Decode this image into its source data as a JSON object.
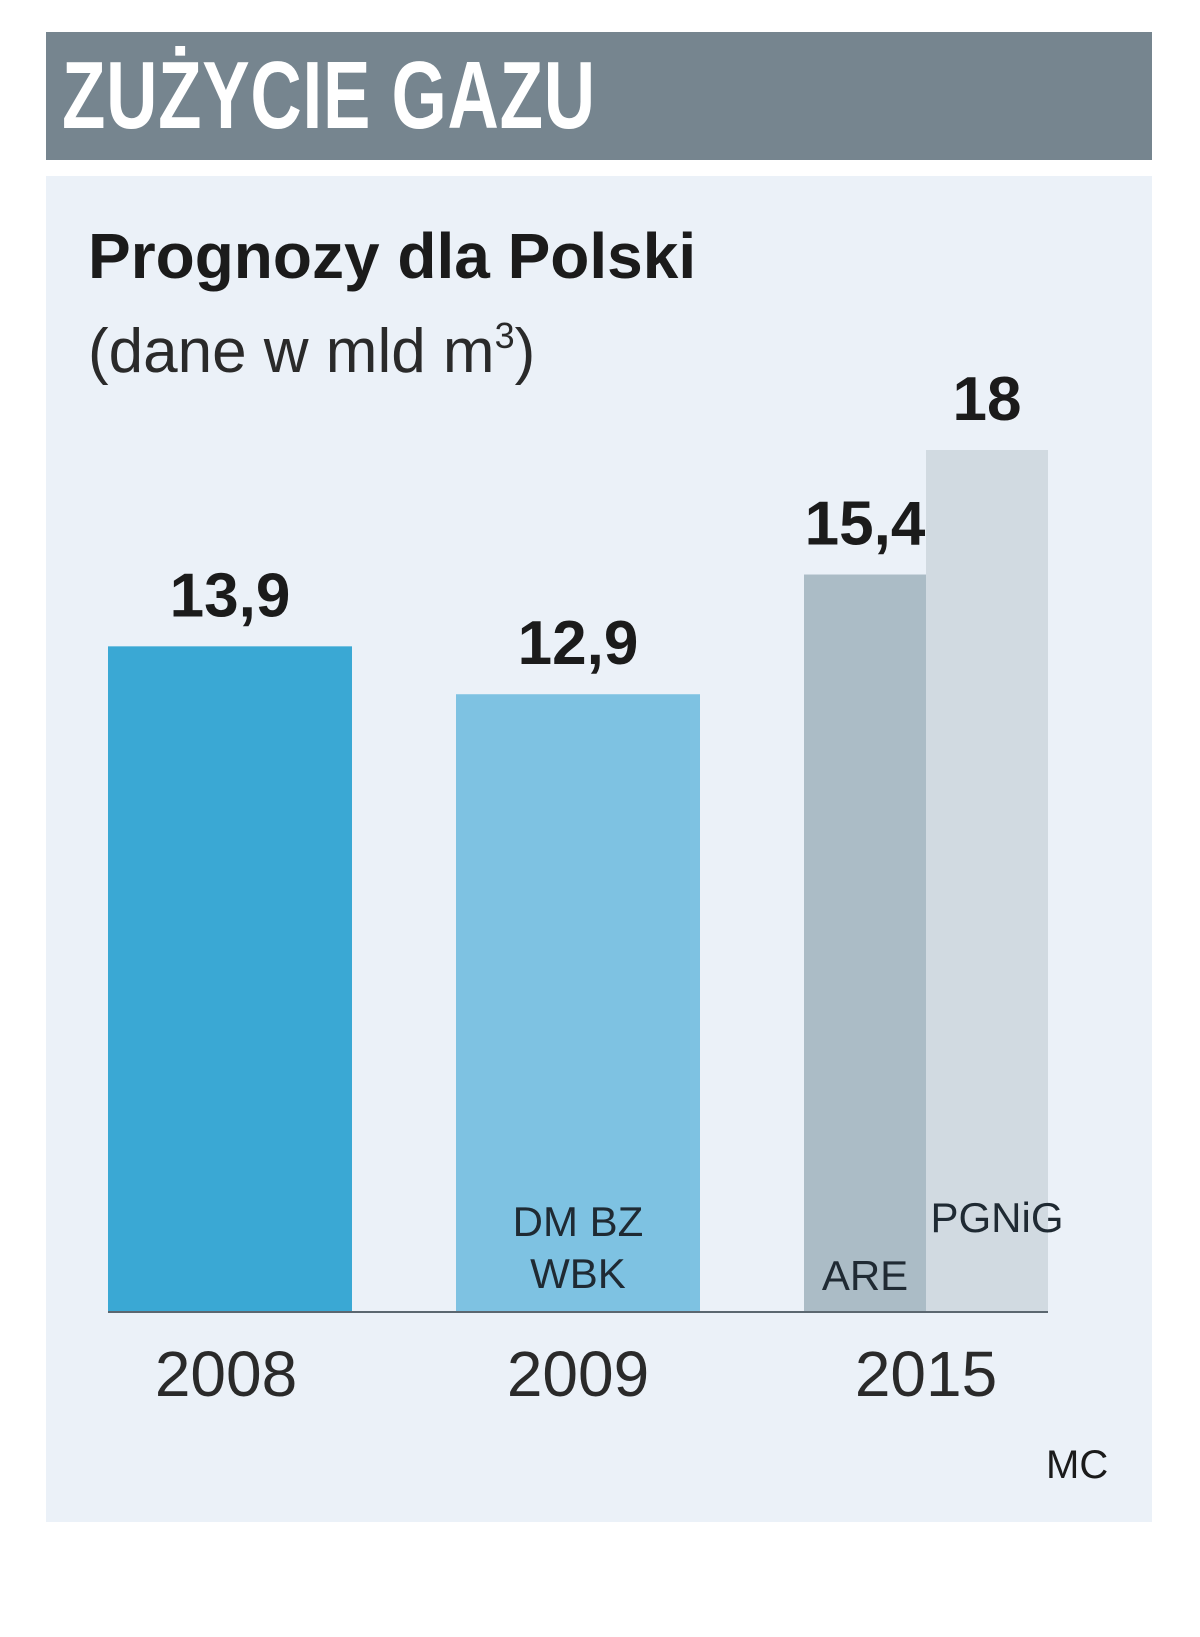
{
  "header": {
    "title": "ZUŻYCIE GAZU"
  },
  "subtitle": "Prognozy dla Polski",
  "unit_note": {
    "text": "(dane w mld m",
    "superscript": "3",
    "close": ")"
  },
  "source_label": "MC",
  "chart_data": {
    "type": "bar",
    "title": "ZUŻYCIE GAZU",
    "subtitle": "Prognozy dla Polski",
    "ylabel": "(dane w mld m³)",
    "categories": [
      "2008",
      "2009",
      "2015"
    ],
    "bars": [
      {
        "category": "2008",
        "value": 13.9,
        "value_label": "13,9",
        "inner_label": [],
        "color": "#3aa8d4"
      },
      {
        "category": "2009",
        "value": 12.9,
        "value_label": "12,9",
        "inner_label": [
          "DM BZ",
          "WBK"
        ],
        "color": "#7ec2e2"
      },
      {
        "category": "2015",
        "value": 15.4,
        "value_label": "15,4",
        "inner_label": [
          "ARE"
        ],
        "color": "#abbcc6"
      },
      {
        "category": "2015",
        "value": 18,
        "value_label": "18",
        "inner_label": [
          "PGNiG"
        ],
        "color": "#d1dae1"
      }
    ],
    "ylim": [
      0,
      18
    ],
    "grid": false,
    "legend": "none"
  }
}
